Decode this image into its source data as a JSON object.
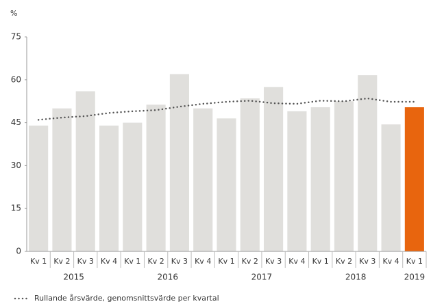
{
  "chart_data": {
    "type": "bar_line",
    "y_label": "%",
    "categories": [
      "Kv 1",
      "Kv 2",
      "Kv 3",
      "Kv 4",
      "Kv 1",
      "Kv 2",
      "Kv 3",
      "Kv 4",
      "Kv 1",
      "Kv 2",
      "Kv 3",
      "Kv 4",
      "Kv 1",
      "Kv 2",
      "Kv 3",
      "Kv 4",
      "Kv 1"
    ],
    "groups": [
      "2015",
      "2016",
      "2017",
      "2018",
      "2019"
    ],
    "series": [
      {
        "type": "bar",
        "values": [
          44,
          50,
          56,
          44,
          45,
          51.3,
          62,
          50,
          46.5,
          53.5,
          57.5,
          49,
          50.4,
          52.5,
          61.6,
          44.4,
          50.4
        ],
        "colors": [
          "#e0dfdc",
          "#e0dfdc",
          "#e0dfdc",
          "#e0dfdc",
          "#e0dfdc",
          "#e0dfdc",
          "#e0dfdc",
          "#e0dfdc",
          "#e0dfdc",
          "#e0dfdc",
          "#e0dfdc",
          "#e0dfdc",
          "#e0dfdc",
          "#e0dfdc",
          "#e0dfdc",
          "#e0dfdc",
          "#e8650e"
        ]
      },
      {
        "type": "line",
        "name": "Rullande årsvärde, genomsnittsvärde per kvartal",
        "color": "#555555",
        "values": [
          46,
          46.8,
          47.3,
          48.4,
          49,
          49.4,
          50.6,
          51.6,
          52.3,
          52.7,
          51.8,
          51.6,
          52.7,
          52.5,
          53.5,
          52.3,
          52.3
        ]
      }
    ],
    "ylim": [
      0,
      75
    ],
    "yticks": [
      0,
      15,
      30,
      45,
      60,
      75
    ],
    "grid": false
  }
}
